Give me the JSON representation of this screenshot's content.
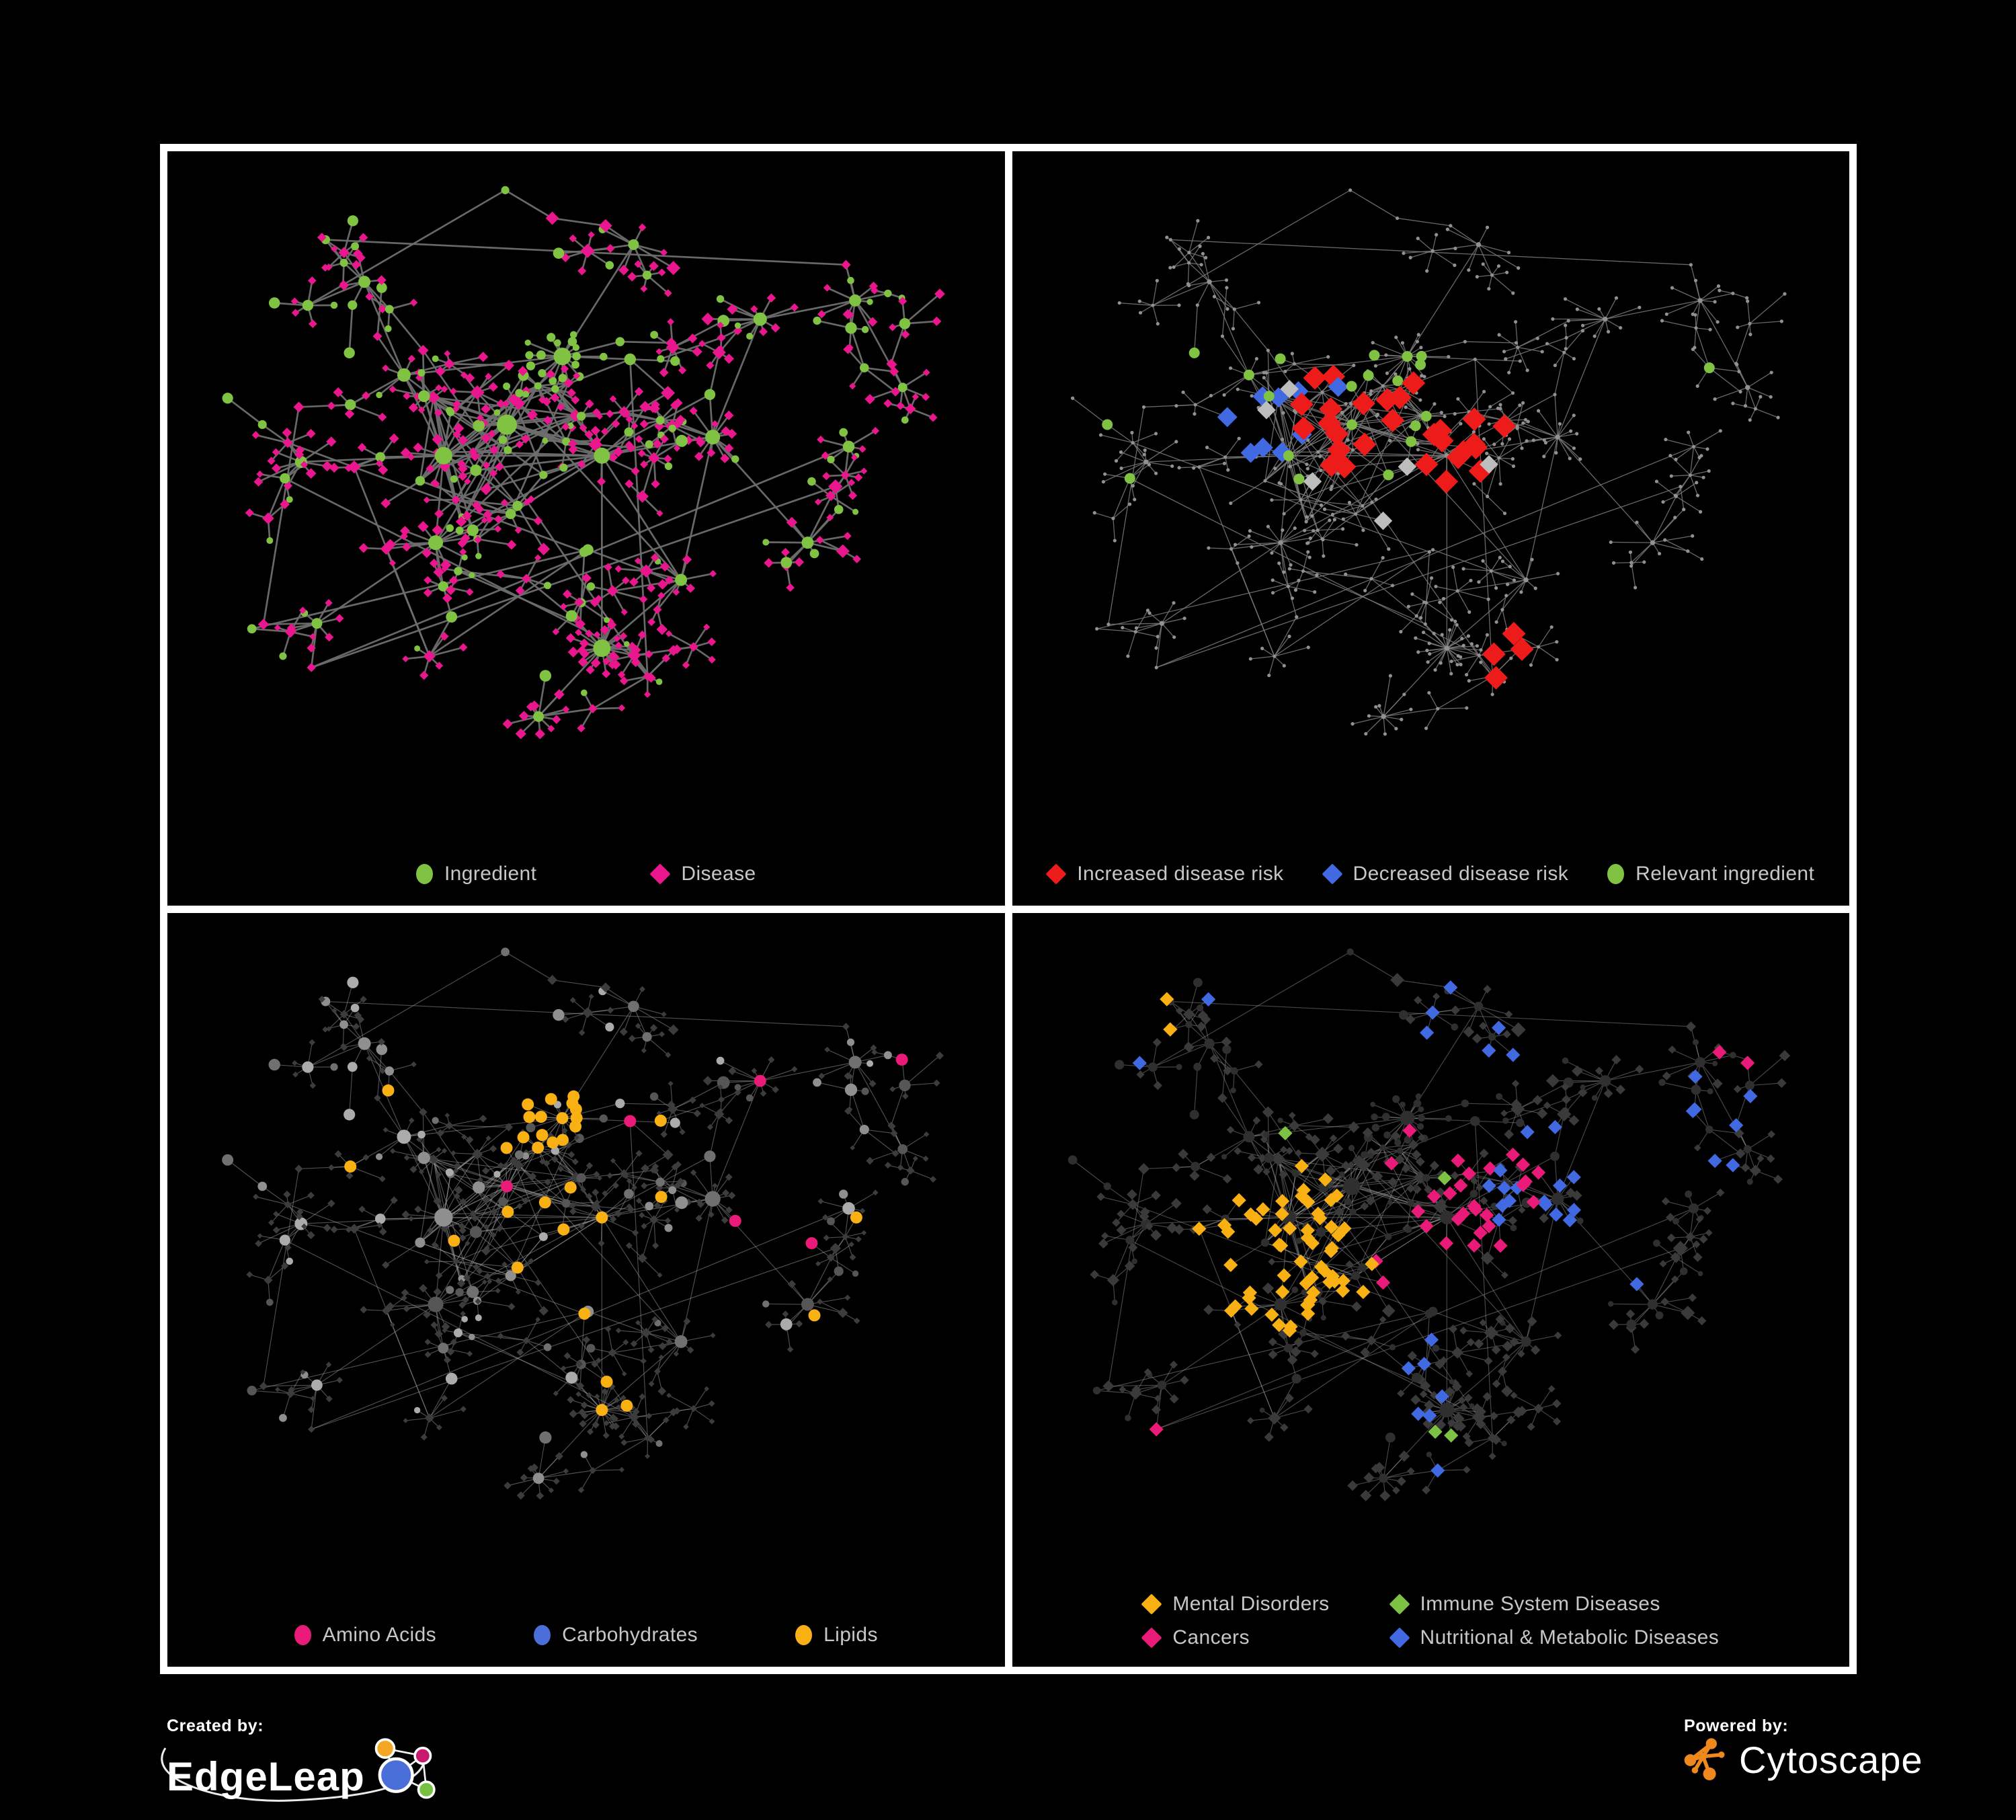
{
  "footer": {
    "created_by": "Created by:",
    "edgeleap": "EdgeLeap",
    "powered_by": "Powered by:",
    "cytoscape": "Cytoscape"
  },
  "palette": {
    "background": "#000000",
    "frame": "#ffffff",
    "legend_text": "#c7c7c7",
    "ingredient_green": "#80c342",
    "disease_pink": "#ea168d",
    "risk_red": "#ee1b1b",
    "risk_blue": "#4169e1",
    "amino_pink": "#ea1a78",
    "carb_blue": "#4a6fd8",
    "lipid_orange": "#f9b013",
    "cytoscape_orange": "#f0891d"
  },
  "chart_data": {
    "type": "network",
    "title": "",
    "description": "Four views of the same ingredient-disease association network rendered on black panels: (1) node types, (2) disease-risk overlay, (3) ingredient chemical classes, (4) disease classes.",
    "layout": "force-directed, shared across all four panels",
    "network": {
      "seed": 7,
      "leafCircleP": 0.16,
      "core": {
        "x": 0.39,
        "y": 0.44,
        "r": 0.14,
        "count": 58
      },
      "longEdges": 22,
      "hubs": [
        {
          "x": 0.4,
          "y": 0.41,
          "s": 15,
          "branches": 6,
          "leaves": 8
        },
        {
          "x": 0.32,
          "y": 0.46,
          "s": 13,
          "branches": 5,
          "leaves": 10
        },
        {
          "x": 0.47,
          "y": 0.3,
          "s": 13,
          "branches": 4,
          "leaves": 16,
          "leafShape": "circle"
        },
        {
          "x": 0.52,
          "y": 0.46,
          "s": 12,
          "branches": 4,
          "leaves": 6
        },
        {
          "x": 0.27,
          "y": 0.33,
          "s": 10,
          "branches": 4,
          "leaves": 5
        },
        {
          "x": 0.14,
          "y": 0.47,
          "s": 9,
          "branches": 3,
          "leaves": 7
        },
        {
          "x": 0.31,
          "y": 0.6,
          "s": 11,
          "branches": 4,
          "leaves": 10
        },
        {
          "x": 0.52,
          "y": 0.77,
          "s": 13,
          "branches": 3,
          "leaves": 24,
          "leafShape": "diamond"
        },
        {
          "x": 0.66,
          "y": 0.43,
          "s": 11,
          "branches": 4,
          "leaves": 12,
          "leafShape": "diamond"
        },
        {
          "x": 0.72,
          "y": 0.24,
          "s": 10,
          "branches": 4,
          "leaves": 8
        },
        {
          "x": 0.84,
          "y": 0.21,
          "s": 9,
          "branches": 3,
          "leaves": 7
        },
        {
          "x": 0.22,
          "y": 0.18,
          "s": 9,
          "branches": 5,
          "leaves": 4
        },
        {
          "x": 0.56,
          "y": 0.12,
          "s": 8,
          "branches": 4,
          "leaves": 4
        },
        {
          "x": 0.78,
          "y": 0.6,
          "s": 9,
          "branches": 4,
          "leaves": 6
        },
        {
          "x": 0.16,
          "y": 0.73,
          "s": 8,
          "branches": 3,
          "leaves": 6
        },
        {
          "x": 0.44,
          "y": 0.88,
          "s": 8,
          "branches": 2,
          "leaves": 10,
          "leafShape": "diamond"
        },
        {
          "x": 0.62,
          "y": 0.66,
          "s": 9,
          "branches": 3,
          "leaves": 6
        },
        {
          "x": 0.9,
          "y": 0.35,
          "s": 7,
          "branches": 2,
          "leaves": 5
        }
      ],
      "links": [
        [
          0,
          1
        ],
        [
          0,
          2
        ],
        [
          0,
          3
        ],
        [
          1,
          4
        ],
        [
          1,
          5
        ],
        [
          1,
          6
        ],
        [
          0,
          6
        ],
        [
          3,
          8
        ],
        [
          2,
          12
        ],
        [
          4,
          11
        ],
        [
          6,
          14
        ],
        [
          7,
          15
        ],
        [
          3,
          7
        ],
        [
          8,
          13
        ],
        [
          8,
          9
        ],
        [
          9,
          10
        ],
        [
          10,
          17
        ],
        [
          16,
          8
        ],
        [
          16,
          7
        ],
        [
          2,
          4
        ],
        [
          3,
          16
        ]
      ]
    },
    "panels": [
      {
        "name": "ingredient-disease",
        "seed": 11,
        "edge": {
          "color": "#6e6e6e",
          "width": 2.7,
          "opacity": 0.95
        },
        "base": {
          "circle": {
            "color": "#80c342",
            "scale": 1.0
          },
          "diamond": {
            "color": "#ea168d",
            "scale": 0.95
          }
        },
        "categories": [],
        "legend_layout": "row",
        "legend_gap": 170,
        "legend": [
          {
            "label": "Ingredient",
            "shape": "circle",
            "color": "#80c342"
          },
          {
            "label": "Disease",
            "shape": "diamond",
            "color": "#ea168d"
          }
        ]
      },
      {
        "name": "disease-risk",
        "seed": 23,
        "edge": {
          "color": "#7a7a7a",
          "width": 1.3,
          "opacity": 0.85
        },
        "base": {
          "circle": {
            "color": "#919191",
            "dot": true,
            "size": 2.6
          },
          "diamond": {
            "color": "#919191",
            "dot": true,
            "size": 2.6
          }
        },
        "categories": [
          {
            "name": "decreased-risk",
            "color": "#4169e1",
            "shape": "diamond",
            "size": 12,
            "apply": "diamond",
            "cap": 9,
            "regions": [
              {
                "x": 0.85,
                "y": 0.33,
                "r": 0.045,
                "p": 0.95
              },
              {
                "x": 0.29,
                "y": 0.41,
                "r": 0.05,
                "p": 0.4
              },
              {
                "x": 0.36,
                "y": 0.33,
                "r": 0.04,
                "p": 0.35
              }
            ]
          },
          {
            "name": "neutral-risk",
            "color": "#bdbdbd",
            "shape": "diamond",
            "size": 11,
            "apply": "diamond",
            "cap": 7,
            "regions": [
              {
                "x": 0.3,
                "y": 0.37,
                "r": 0.05,
                "p": 0.35
              },
              {
                "x": 0.43,
                "y": 0.53,
                "r": 0.09,
                "p": 0.1
              },
              {
                "x": 0.55,
                "y": 0.5,
                "r": 0.06,
                "p": 0.18
              }
            ]
          },
          {
            "name": "increased-risk",
            "color": "#ee1b1b",
            "shape": "diamond",
            "size": 14,
            "apply": "diamond",
            "cap": 32,
            "regions": [
              {
                "x": 0.44,
                "y": 0.4,
                "r": 0.13,
                "p": 0.4
              },
              {
                "x": 0.33,
                "y": 0.35,
                "r": 0.06,
                "p": 0.3
              },
              {
                "x": 0.56,
                "y": 0.45,
                "r": 0.07,
                "p": 0.4
              },
              {
                "x": 0.63,
                "y": 0.8,
                "r": 0.07,
                "p": 0.4
              },
              {
                "x": 0.52,
                "y": 0.28,
                "r": 0.06,
                "p": 0.3
              },
              {
                "x": 0.7,
                "y": 0.35,
                "r": 0.06,
                "p": 0.25
              }
            ]
          },
          {
            "name": "relevant-ingredient",
            "color": "#80c342",
            "shape": "circle",
            "size": 8,
            "apply": "circle",
            "cap": 22,
            "regions": [
              {
                "x": 0.4,
                "y": 0.38,
                "r": 0.14,
                "p": 0.3
              },
              {
                "x": 0.14,
                "y": 0.44,
                "r": 0.07,
                "p": 0.5
              },
              {
                "x": 0.85,
                "y": 0.32,
                "r": 0.05,
                "p": 0.8
              },
              {
                "x": 0.25,
                "y": 0.3,
                "r": 0.09,
                "p": 0.3
              },
              {
                "x": 0.52,
                "y": 0.55,
                "r": 0.08,
                "p": 0.2
              }
            ]
          }
        ],
        "legend_layout": "row",
        "legend_gap": 58,
        "legend": [
          {
            "label": "Increased disease risk",
            "shape": "diamond",
            "color": "#ee1b1b"
          },
          {
            "label": "Decreased disease risk",
            "shape": "diamond",
            "color": "#4169e1"
          },
          {
            "label": "Relevant ingredient",
            "shape": "circle",
            "color": "#80c342"
          }
        ]
      },
      {
        "name": "chemical-classes",
        "seed": 37,
        "edge": {
          "color": "#a0a0a0",
          "width": 1.15,
          "opacity": 0.5
        },
        "base": {
          "circle": {
            "colors": [
              "#ababab",
              "#8f8f8f",
              "#707070",
              "#565656"
            ],
            "scale": 1.05
          },
          "diamond": {
            "color": "#3c3c3c",
            "scale": 0.72
          }
        },
        "categories": [
          {
            "name": "lipids",
            "color": "#f9b013",
            "shape": "circle",
            "size": 9,
            "apply": "circle",
            "cap": 85,
            "regions": [
              {
                "x": 0.4,
                "y": 0.26,
                "r": 0.1,
                "p": 0.8
              },
              {
                "x": 0.42,
                "y": 0.47,
                "r": 0.1,
                "p": 0.35
              },
              {
                "x": 0.53,
                "y": 0.73,
                "r": 0.045,
                "p": 0.9
              },
              {
                "x": 0.6,
                "y": 0.5,
                "r": 0.25,
                "p": 0.07
              },
              {
                "x": 0.25,
                "y": 0.4,
                "r": 0.15,
                "p": 0.1
              }
            ]
          },
          {
            "name": "carbohydrates",
            "color": "#4a6fd8",
            "shape": "circle",
            "size": 9,
            "apply": "circle",
            "cap": 15,
            "regions": [
              {
                "x": 0.38,
                "y": 0.28,
                "r": 0.09,
                "p": 0.3
              },
              {
                "x": 0.13,
                "y": 0.35,
                "r": 0.05,
                "p": 0.5
              },
              {
                "x": 0.75,
                "y": 0.6,
                "r": 0.06,
                "p": 0.3
              }
            ]
          },
          {
            "name": "amino-acids",
            "color": "#ea1a78",
            "shape": "circle",
            "size": 9,
            "apply": "circle",
            "cap": 18,
            "regions": [
              {
                "x": 0.5,
                "y": 0.5,
                "r": 0.65,
                "p": 0.05
              }
            ]
          }
        ],
        "legend_layout": "row",
        "legend_gap": 145,
        "legend": [
          {
            "label": "Amino Acids",
            "shape": "circle",
            "color": "#ea1a78"
          },
          {
            "label": "Carbohydrates",
            "shape": "circle",
            "color": "#4a6fd8"
          },
          {
            "label": "Lipids",
            "shape": "circle",
            "color": "#f9b013"
          }
        ]
      },
      {
        "name": "disease-classes",
        "seed": 53,
        "edge": {
          "color": "#a0a0a0",
          "width": 1.15,
          "opacity": 0.45
        },
        "base": {
          "circle": {
            "color": "#2f2f2f",
            "scale": 0.85
          },
          "diamond": {
            "color": "#3a3a3a",
            "scale": 1.0
          }
        },
        "categories": [
          {
            "name": "mental-disorders",
            "color": "#f9b013",
            "shape": "diamond",
            "size": 8.5,
            "apply": "diamond",
            "cap": 100,
            "regions": [
              {
                "x": 0.31,
                "y": 0.53,
                "r": 0.12,
                "p": 0.88
              },
              {
                "x": 0.33,
                "y": 0.44,
                "r": 0.07,
                "p": 0.4
              },
              {
                "x": 0.22,
                "y": 0.12,
                "r": 0.13,
                "p": 0.16
              },
              {
                "x": 0.37,
                "y": 0.2,
                "r": 0.08,
                "p": 0.15
              }
            ]
          },
          {
            "name": "cancers",
            "color": "#ea1a78",
            "shape": "diamond",
            "size": 8.5,
            "apply": "diamond",
            "cap": 65,
            "regions": [
              {
                "x": 0.5,
                "y": 0.52,
                "r": 0.1,
                "p": 0.6
              },
              {
                "x": 0.46,
                "y": 0.32,
                "r": 0.06,
                "p": 0.3
              },
              {
                "x": 0.88,
                "y": 0.17,
                "r": 0.055,
                "p": 0.6
              },
              {
                "x": 0.58,
                "y": 0.42,
                "r": 0.07,
                "p": 0.25
              },
              {
                "x": 0.15,
                "y": 0.8,
                "r": 0.06,
                "p": 0.2
              }
            ]
          },
          {
            "name": "nutritional-metabolic",
            "color": "#4169e1",
            "shape": "diamond",
            "size": 8.5,
            "apply": "diamond",
            "cap": 110,
            "regions": [
              {
                "x": 0.68,
                "y": 0.42,
                "r": 0.12,
                "p": 0.45
              },
              {
                "x": 0.84,
                "y": 0.3,
                "r": 0.12,
                "p": 0.35
              },
              {
                "x": 0.6,
                "y": 0.12,
                "r": 0.12,
                "p": 0.3
              },
              {
                "x": 0.3,
                "y": 0.06,
                "r": 0.1,
                "p": 0.35
              },
              {
                "x": 0.74,
                "y": 0.65,
                "r": 0.1,
                "p": 0.25
              },
              {
                "x": 0.45,
                "y": 0.72,
                "r": 0.09,
                "p": 0.18
              },
              {
                "x": 0.13,
                "y": 0.14,
                "r": 0.08,
                "p": 0.25
              },
              {
                "x": 0.52,
                "y": 0.88,
                "r": 0.06,
                "p": 0.3
              }
            ]
          },
          {
            "name": "immune-system",
            "color": "#7dc242",
            "shape": "diamond",
            "size": 8.5,
            "apply": "diamond",
            "cap": 8,
            "regions": [
              {
                "x": 0.5,
                "y": 0.38,
                "r": 0.2,
                "p": 0.05
              },
              {
                "x": 0.44,
                "y": 0.82,
                "r": 0.09,
                "p": 0.18
              }
            ]
          }
        ],
        "legend_layout": "grid2",
        "legend_gap": 90,
        "legend": [
          {
            "label": "Mental Disorders",
            "shape": "diamond",
            "color": "#f9b013"
          },
          {
            "label": "Immune System Diseases",
            "shape": "diamond",
            "color": "#7dc242"
          },
          {
            "label": "Cancers",
            "shape": "diamond",
            "color": "#ea1a78"
          },
          {
            "label": "Nutritional & Metabolic Diseases",
            "shape": "diamond",
            "color": "#4169e1"
          }
        ]
      }
    ]
  }
}
